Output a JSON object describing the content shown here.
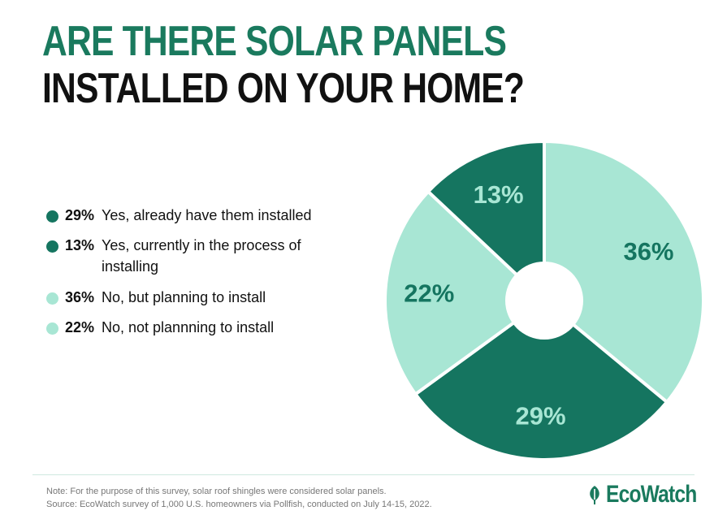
{
  "title": {
    "line1": "ARE THERE SOLAR PANELS",
    "line2": "INSTALLED ON YOUR HOME?",
    "line1_color": "#1a7a5e",
    "line2_color": "#111111"
  },
  "colors": {
    "dark": "#157560",
    "light": "#a8e6d4",
    "divider": "#cfe9e0",
    "brand": "#1a7a5e"
  },
  "legend": [
    {
      "pct": "29%",
      "label": "Yes, already have them installed",
      "color": "#157560",
      "icon": "bullet-dot-icon"
    },
    {
      "pct": "13%",
      "label": "Yes, currently in the process of installing",
      "color": "#157560",
      "icon": "bullet-dot-icon"
    },
    {
      "pct": "36%",
      "label": "No, but planning to install",
      "color": "#a8e6d4",
      "icon": "bullet-dot-icon"
    },
    {
      "pct": "22%",
      "label": "No, not plannning to install",
      "color": "#a8e6d4",
      "icon": "bullet-dot-icon"
    }
  ],
  "chart_data": {
    "type": "pie",
    "donut": true,
    "start": "top",
    "direction": "clockwise",
    "slices": [
      {
        "label": "No, but planning to install",
        "value": 36,
        "display": "36%",
        "color": "#a8e6d4",
        "text_color": "#157560"
      },
      {
        "label": "Yes, already have them installed",
        "value": 29,
        "display": "29%",
        "color": "#157560",
        "text_color": "#a8e6d4"
      },
      {
        "label": "No, not plannning to install",
        "value": 22,
        "display": "22%",
        "color": "#a8e6d4",
        "text_color": "#157560"
      },
      {
        "label": "Yes, currently in the process of installing",
        "value": 13,
        "display": "13%",
        "color": "#157560",
        "text_color": "#a8e6d4"
      }
    ]
  },
  "footer": {
    "note": "Note: For the purpose of this survey, solar roof shingles were considered solar panels.",
    "source": "Source: EcoWatch survey of 1,000 U.S. homeowners via Pollfish, conducted on July 14-15, 2022.",
    "logo_text": "EcoWatch",
    "logo_icon": "leaf-icon"
  }
}
